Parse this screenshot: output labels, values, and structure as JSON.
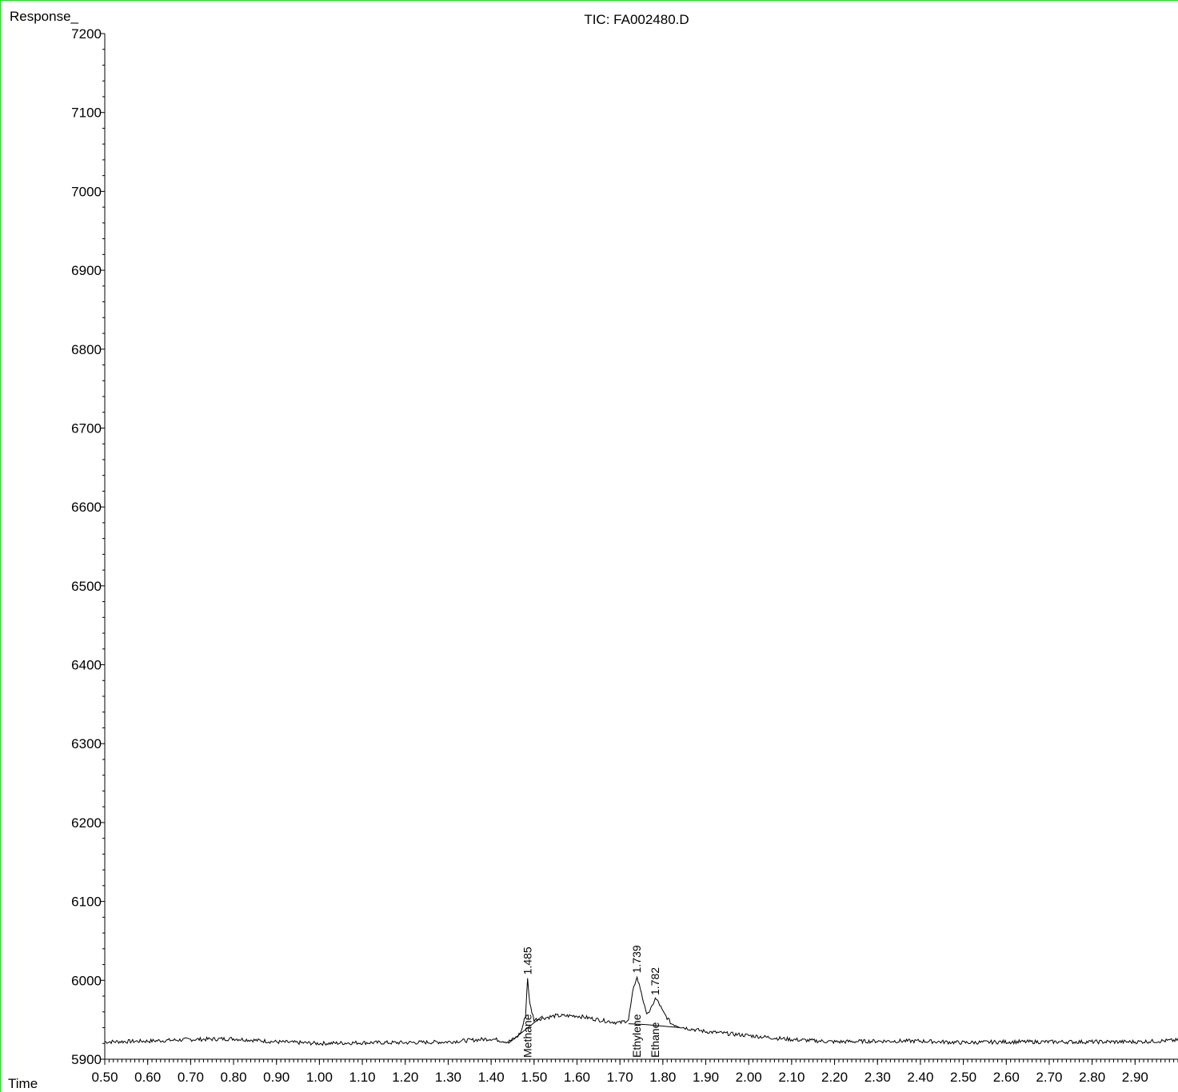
{
  "chart_data": {
    "type": "line",
    "title": "TIC: FA002480.D",
    "ylabel": "Response_",
    "xlabel": "Time",
    "xlim": [
      0.5,
      3.0
    ],
    "ylim": [
      5900,
      7200
    ],
    "x_ticks": [
      "0.50",
      "0.60",
      "0.70",
      "0.80",
      "0.90",
      "1.00",
      "1.10",
      "1.20",
      "1.30",
      "1.40",
      "1.50",
      "1.60",
      "1.70",
      "1.80",
      "1.90",
      "2.00",
      "2.10",
      "2.20",
      "2.30",
      "2.40",
      "2.50",
      "2.60",
      "2.70",
      "2.80",
      "2.90"
    ],
    "y_ticks": [
      "5900",
      "6000",
      "6100",
      "6200",
      "6300",
      "6400",
      "6500",
      "6600",
      "6700",
      "6800",
      "6900",
      "7000",
      "7100",
      "7200"
    ],
    "series": [
      {
        "x": [
          0.5,
          0.6,
          0.7,
          0.8,
          0.9,
          1.0,
          1.1,
          1.2,
          1.3,
          1.4,
          1.44,
          1.46,
          1.47,
          1.48,
          1.485,
          1.49,
          1.5,
          1.52,
          1.55,
          1.6,
          1.65,
          1.7,
          1.72,
          1.73,
          1.739,
          1.75,
          1.76,
          1.77,
          1.782,
          1.79,
          1.8,
          1.82,
          1.85,
          1.9,
          2.0,
          2.1,
          2.2,
          2.3,
          2.4,
          2.5,
          2.6,
          2.7,
          2.8,
          2.9,
          3.0
        ],
        "y": [
          5922,
          5923,
          5925,
          5926,
          5922,
          5920,
          5921,
          5921,
          5922,
          5926,
          5922,
          5928,
          5935,
          5955,
          6003,
          5970,
          5950,
          5952,
          5955,
          5955,
          5950,
          5946,
          5950,
          5985,
          6005,
          5985,
          5960,
          5960,
          5977,
          5972,
          5960,
          5945,
          5940,
          5935,
          5930,
          5925,
          5922,
          5923,
          5923,
          5921,
          5922,
          5922,
          5922,
          5922,
          5924
        ]
      }
    ],
    "peaks": [
      {
        "rt": "1.485",
        "x": 1.485,
        "y": 6003,
        "name": "Methane"
      },
      {
        "rt": "1.739",
        "x": 1.739,
        "y": 6005,
        "name": "Ethylene"
      },
      {
        "rt": "1.782",
        "x": 1.782,
        "y": 5977,
        "name": "Ethane"
      }
    ],
    "baselines": [
      {
        "x1": 1.44,
        "y1": 5920,
        "x2": 1.52,
        "y2": 5955
      },
      {
        "x1": 1.72,
        "y1": 5945,
        "x2": 1.76,
        "y2": 5944
      },
      {
        "x1": 1.76,
        "y1": 5944,
        "x2": 1.84,
        "y2": 5940
      }
    ],
    "grid": false,
    "colors": {
      "line": "#000000",
      "frame": "#21d321"
    }
  }
}
